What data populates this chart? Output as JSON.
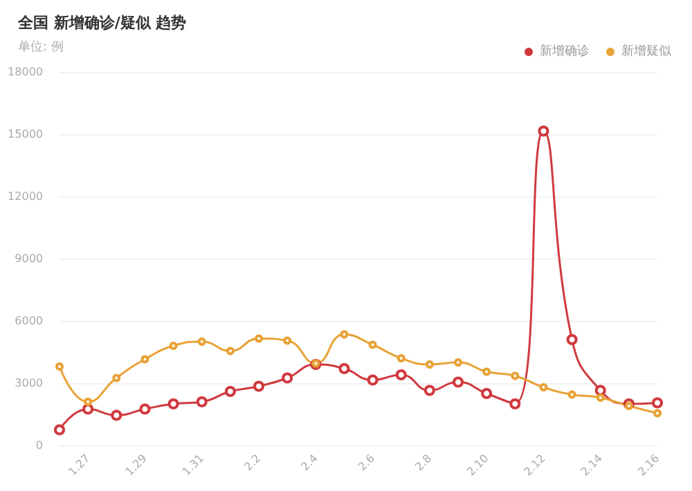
{
  "chart_data": {
    "type": "line",
    "title": "全国 新增确诊/疑似 趋势",
    "subtitle": "单位: 例",
    "categories": [
      null,
      "1.27",
      null,
      "1.29",
      null,
      "1.31",
      null,
      "2.2",
      null,
      "2.4",
      null,
      "2.6",
      null,
      "2.8",
      null,
      "2.10",
      null,
      "2.12",
      null,
      "2.14",
      null,
      "2.16"
    ],
    "series": [
      {
        "name": "新增确诊",
        "color": "#d0393e",
        "values": [
          750,
          1750,
          1450,
          1750,
          2000,
          2100,
          2600,
          2850,
          3250,
          3900,
          3700,
          3150,
          3400,
          2650,
          3050,
          2500,
          2000,
          15150,
          5100,
          2650,
          2000,
          2050
        ]
      },
      {
        "name": "新增疑似",
        "color": "#e8a236",
        "values": [
          3800,
          2100,
          3250,
          4150,
          4800,
          5000,
          4550,
          5150,
          5050,
          3950,
          5350,
          4850,
          4200,
          3900,
          4000,
          3550,
          3350,
          2800,
          2450,
          2300,
          1900,
          1550
        ]
      }
    ],
    "ylim": [
      0,
      18000
    ],
    "yticks": [
      0,
      3000,
      6000,
      9000,
      12000,
      15000,
      18000
    ],
    "grid": "y",
    "legend": "top right",
    "marker": "circle",
    "line_style": "solid"
  }
}
